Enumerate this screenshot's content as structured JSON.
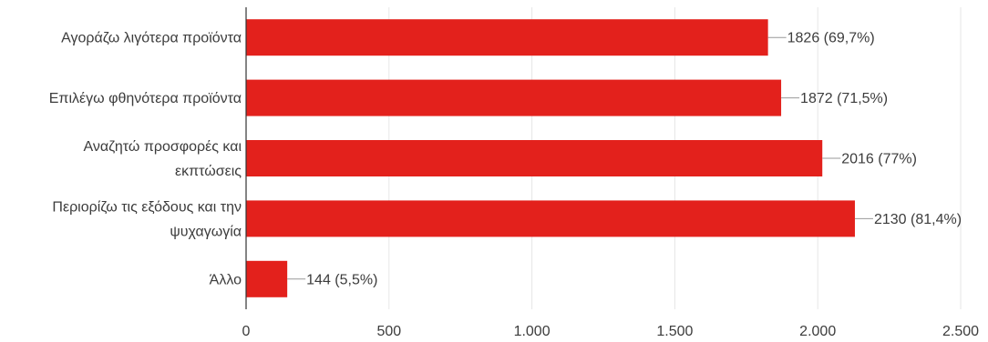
{
  "chart_data": {
    "type": "bar",
    "orientation": "horizontal",
    "categories": [
      [
        "Αγοράζω λιγότερα προϊόντα"
      ],
      [
        "Επιλέγω φθηνότερα προϊόντα"
      ],
      [
        "Αναζητώ προσφορές και",
        "εκπτώσεις"
      ],
      [
        "Περιορίζω τις εξόδους και την",
        "ψυχαγωγία"
      ],
      [
        "Άλλο"
      ]
    ],
    "values": [
      1826,
      1872,
      2016,
      2130,
      144
    ],
    "data_labels": [
      "1826 (69,7%)",
      "1872 (71,5%)",
      "2016 (77%)",
      "2130 (81,4%)",
      "144 (5,5%)"
    ],
    "xlim": [
      0,
      2500
    ],
    "x_ticks": [
      0,
      500,
      1000,
      1500,
      2000,
      2500
    ],
    "x_tick_labels": [
      "0",
      "500",
      "1.000",
      "1.500",
      "2.000",
      "2.500"
    ],
    "grid": true,
    "colors": {
      "bar": "#e3211c",
      "grid": "#e6e6e6",
      "text": "#3c3c3c",
      "axis": "#333333"
    }
  }
}
